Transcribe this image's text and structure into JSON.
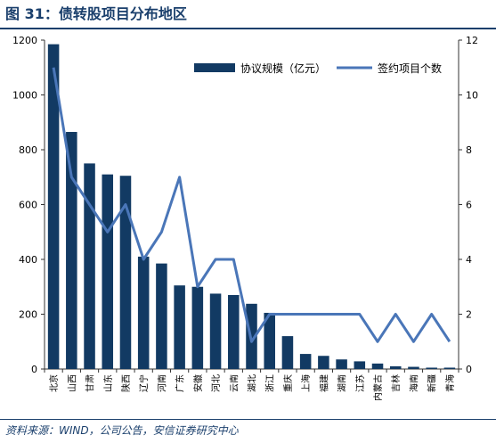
{
  "figure": {
    "title": "图 31：债转股项目分布地区",
    "source": "资料来源：WIND，公司公告，安信证券研究中心"
  },
  "colors": {
    "bar": "#123a63",
    "line": "#4a76b8",
    "title": "#1a3f6c",
    "axis": "#333333"
  },
  "chart_data": {
    "type": "bar+line",
    "categories": [
      "北京",
      "山西",
      "甘肃",
      "山东",
      "陕西",
      "辽宁",
      "河南",
      "广东",
      "安徽",
      "河北",
      "云南",
      "湖北",
      "浙江",
      "重庆",
      "上海",
      "福建",
      "湖南",
      "江苏",
      "内蒙古",
      "吉林",
      "海南",
      "新疆",
      "青海"
    ],
    "series": [
      {
        "name": "协议规模（亿元）",
        "type": "bar",
        "axis": "left",
        "values": [
          1185,
          865,
          750,
          710,
          705,
          410,
          385,
          305,
          300,
          275,
          270,
          238,
          205,
          120,
          55,
          48,
          35,
          28,
          20,
          10,
          8,
          5,
          5
        ]
      },
      {
        "name": "签约项目个数",
        "type": "line",
        "axis": "right",
        "values": [
          11,
          7,
          6,
          5,
          6,
          4,
          5,
          7,
          3,
          4,
          4,
          1,
          2,
          2,
          2,
          2,
          2,
          2,
          1,
          2,
          1,
          2,
          1
        ]
      }
    ],
    "y_left": {
      "min": 0,
      "max": 1200,
      "ticks": [
        0,
        200,
        400,
        600,
        800,
        1000,
        1200
      ]
    },
    "y_right": {
      "min": 0,
      "max": 12,
      "ticks": [
        0,
        2,
        4,
        6,
        8,
        10,
        12
      ]
    },
    "legend": "top-right",
    "grid": false
  }
}
